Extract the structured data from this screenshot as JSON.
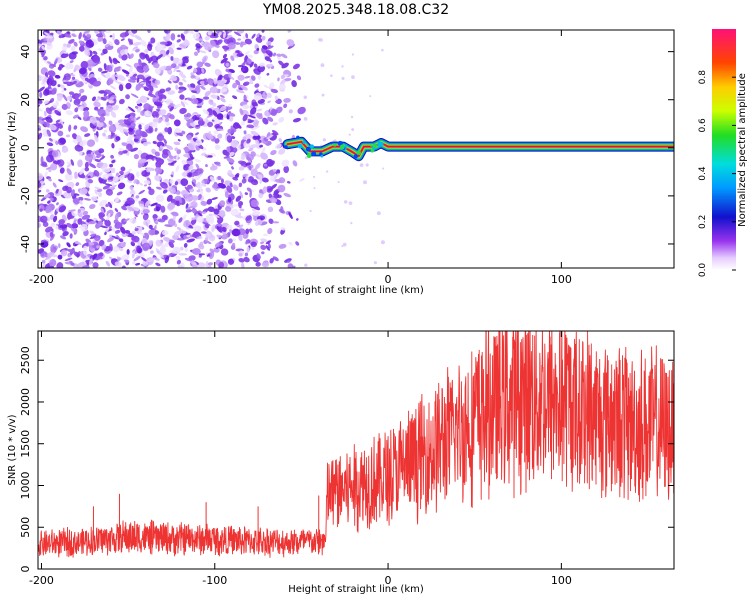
{
  "title": "YM08.2025.348.18.08.C32",
  "colors": {
    "snr_line": "#ee3333",
    "ridge_core": "#cc1133",
    "ridge_edge": "#22cc44",
    "noise": "#7722ee",
    "axis": "#000000",
    "background": "#ffffff"
  },
  "chart_data": [
    {
      "type": "heatmap",
      "name": "spectrogram",
      "xlabel": "Height of straight line (km)",
      "ylabel": "Frequency (Hz)",
      "xlim": [
        -202,
        165
      ],
      "ylim": [
        -50,
        49
      ],
      "xticks": [
        -200,
        -100,
        0,
        100
      ],
      "xtick_labels": [
        "-200",
        "-100",
        "0",
        "100"
      ],
      "yticks": [
        -40,
        -20,
        0,
        20,
        40
      ],
      "ytick_labels": [
        "-40",
        "-20",
        "0",
        "20",
        "40"
      ],
      "noise_region_x": [
        -202,
        -48
      ],
      "ridge": {
        "frequency_hz": 0.5,
        "x_start": -58,
        "x_end": 165,
        "wiggle_points": [
          [
            -58,
            1.5
          ],
          [
            -50,
            2.5
          ],
          [
            -45,
            -1.5
          ],
          [
            -38,
            -1.5
          ],
          [
            -32,
            0.5
          ],
          [
            -26,
            0.5
          ],
          [
            -20,
            -2.0
          ],
          [
            -17,
            -3.5
          ],
          [
            -14,
            0.5
          ],
          [
            -8,
            0.5
          ],
          [
            -4,
            2.0
          ],
          [
            0,
            0.5
          ],
          [
            165,
            0.5
          ]
        ]
      },
      "colorbar": {
        "label": "Normalized spectral amplitude",
        "range": [
          0,
          1
        ],
        "ticks": [
          0.0,
          0.2,
          0.4,
          0.6,
          0.8
        ],
        "tick_labels": [
          "0.0",
          "0.2",
          "0.4",
          "0.6",
          "0.8"
        ]
      }
    },
    {
      "type": "line",
      "name": "snr",
      "xlabel": "Height of straight line (km)",
      "ylabel": "SNR (10 * v/v)",
      "xlim": [
        -202,
        165
      ],
      "ylim": [
        0,
        2850
      ],
      "xticks": [
        -200,
        -100,
        0,
        100
      ],
      "xtick_labels": [
        "-200",
        "-100",
        "0",
        "100"
      ],
      "yticks": [
        0,
        500,
        1000,
        1500,
        2000,
        2500
      ],
      "ytick_labels": [
        "0",
        "500",
        "1000",
        "1500",
        "2000",
        "2500"
      ],
      "trend": [
        [
          -202,
          300
        ],
        [
          -180,
          320
        ],
        [
          -150,
          380
        ],
        [
          -100,
          350
        ],
        [
          -60,
          320
        ],
        [
          -36,
          330
        ],
        [
          -35,
          900
        ],
        [
          -20,
          1000
        ],
        [
          0,
          1100
        ],
        [
          20,
          1350
        ],
        [
          40,
          1650
        ],
        [
          60,
          1950
        ],
        [
          80,
          2080
        ],
        [
          100,
          2000
        ],
        [
          120,
          1850
        ],
        [
          140,
          1750
        ],
        [
          165,
          1680
        ]
      ],
      "spikes": [
        [
          -155,
          900
        ],
        [
          -170,
          750
        ],
        [
          -105,
          800
        ],
        [
          -75,
          750
        ],
        [
          -40,
          880
        ],
        [
          0,
          1450
        ],
        [
          50,
          2350
        ],
        [
          77,
          2600
        ],
        [
          99,
          2830
        ],
        [
          127,
          2500
        ],
        [
          165,
          2550
        ]
      ]
    }
  ]
}
